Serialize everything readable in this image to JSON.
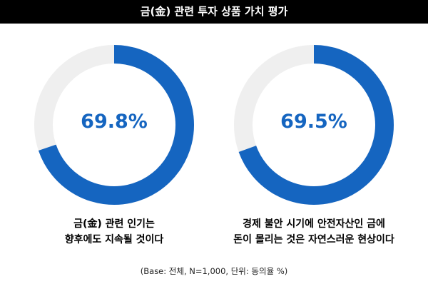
{
  "title": "금(金) 관련 투자 상품 가치 평가",
  "colors": {
    "accent": "#1565c0",
    "track": "#efefef",
    "title_bg": "#000000"
  },
  "chart_data": [
    {
      "type": "pie",
      "value": 69.8,
      "value_label": "69.8%",
      "caption_lines": [
        "금(金) 관련 인기는",
        "향후에도 지속될 것이다"
      ]
    },
    {
      "type": "pie",
      "value": 69.5,
      "value_label": "69.5%",
      "caption_lines": [
        "경제 불안 시기에 안전자산인 금에",
        "돈이 몰리는 것은 자연스러운 현상이다"
      ]
    }
  ],
  "base_note": "(Base: 전체, N=1,000, 단위: 동의율 %)"
}
